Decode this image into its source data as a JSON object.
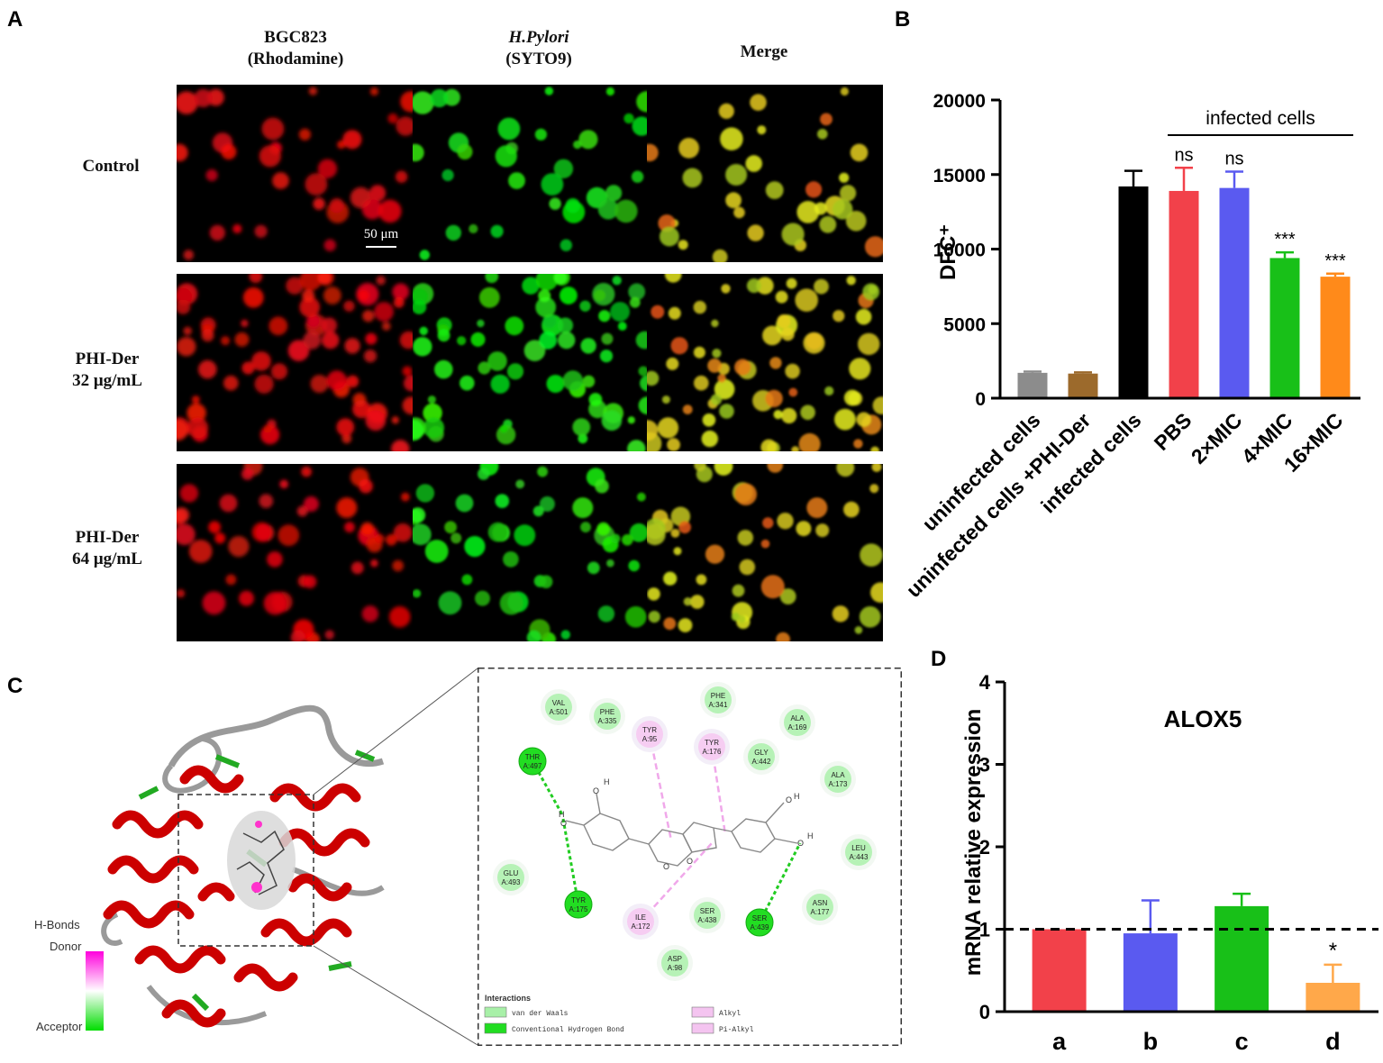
{
  "panels": {
    "a": "A",
    "b": "B",
    "c": "C",
    "d": "D"
  },
  "panel_a": {
    "columns": [
      {
        "line1": "BGC823",
        "line2": "(Rhodamine)"
      },
      {
        "line1": "H.Pylori",
        "line2": "(SYTO9)"
      },
      {
        "line1": "Merge",
        "line2": ""
      }
    ],
    "rows": [
      {
        "line1": "Control",
        "line2": ""
      },
      {
        "line1": "PHI-Der",
        "line2": "32 μg/mL"
      },
      {
        "line1": "PHI-Der",
        "line2": "64 μg/mL"
      }
    ],
    "scale_bar": "50 μm"
  },
  "panel_c": {
    "legend_title": "H-Bonds",
    "donor": "Donor",
    "acceptor": "Acceptor",
    "interactions_title": "Interactions",
    "interaction_types": [
      {
        "label": "van der Waals",
        "color": "#a8f0a8"
      },
      {
        "label": "Conventional Hydrogen Bond",
        "color": "#22dd22"
      },
      {
        "label": "Alkyl",
        "color": "#f4c4f0"
      },
      {
        "label": "Pi-Alkyl",
        "color": "#f4c4f0"
      }
    ],
    "residues": [
      {
        "name": "VAL",
        "id": "A:501",
        "kind": "vdw"
      },
      {
        "name": "PHE",
        "id": "A:335",
        "kind": "vdw"
      },
      {
        "name": "TYR",
        "id": "A:95",
        "kind": "alkyl"
      },
      {
        "name": "PHE",
        "id": "A:341",
        "kind": "vdw"
      },
      {
        "name": "ALA",
        "id": "A:169",
        "kind": "vdw"
      },
      {
        "name": "THR",
        "id": "A:497",
        "kind": "hbond"
      },
      {
        "name": "TYR",
        "id": "A:176",
        "kind": "alkyl"
      },
      {
        "name": "GLY",
        "id": "A:442",
        "kind": "vdw"
      },
      {
        "name": "ALA",
        "id": "A:173",
        "kind": "vdw"
      },
      {
        "name": "LEU",
        "id": "A:443",
        "kind": "vdw"
      },
      {
        "name": "GLU",
        "id": "A:493",
        "kind": "vdw"
      },
      {
        "name": "TYR",
        "id": "A:175",
        "kind": "hbond"
      },
      {
        "name": "ILE",
        "id": "A:172",
        "kind": "alkyl"
      },
      {
        "name": "SER",
        "id": "A:438",
        "kind": "vdw"
      },
      {
        "name": "SER",
        "id": "A:439",
        "kind": "hbond"
      },
      {
        "name": "ASN",
        "id": "A:177",
        "kind": "vdw"
      },
      {
        "name": "ASP",
        "id": "A:98",
        "kind": "vdw"
      }
    ],
    "atom_labels": {
      "h": "H",
      "o": "O"
    }
  },
  "chart_data": [
    {
      "type": "bar",
      "panel": "B",
      "ylabel": "DFC⁺",
      "ylim": [
        0,
        20000
      ],
      "yticks": [
        0,
        5000,
        10000,
        15000,
        20000
      ],
      "categories": [
        "uninfected cells",
        "uninfected cells +PHI-Der",
        "infected cells",
        "PBS",
        "2×MIC",
        "4×MIC",
        "16×MIC"
      ],
      "values": [
        1700,
        1650,
        14200,
        13900,
        14100,
        9400,
        8150
      ],
      "errors": [
        80,
        80,
        1050,
        1550,
        1100,
        380,
        200
      ],
      "colors": [
        "#8c8c8c",
        "#9c6a2c",
        "#000000",
        "#f2414a",
        "#5a5af0",
        "#18c018",
        "#ff8a1a"
      ],
      "significance": [
        "",
        "",
        "",
        "ns",
        "ns",
        "***",
        "***"
      ],
      "bracket_label": "infected cells"
    },
    {
      "type": "bar",
      "panel": "D",
      "title": "ALOX5",
      "ylabel": "mRNA relative expression",
      "ylim": [
        0,
        4
      ],
      "yticks": [
        0,
        1,
        2,
        3,
        4
      ],
      "categories": [
        "a",
        "b",
        "c",
        "d"
      ],
      "values": [
        1.0,
        0.95,
        1.28,
        0.35
      ],
      "errors": [
        0.0,
        0.4,
        0.15,
        0.22
      ],
      "colors": [
        "#f2414a",
        "#5a5af0",
        "#18c018",
        "#ffa84a"
      ],
      "significance": [
        "",
        "",
        "",
        "*"
      ],
      "reference_line": 1
    }
  ]
}
